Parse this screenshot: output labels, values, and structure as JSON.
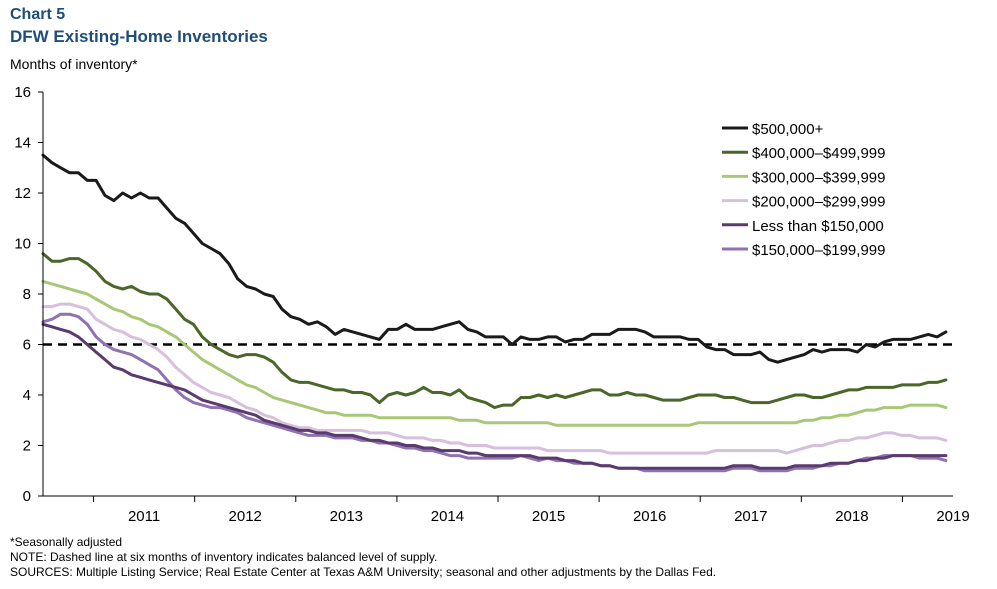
{
  "header": {
    "chart_number": "Chart 5",
    "title": "DFW Existing-Home Inventories",
    "ylabel": "Months of inventory*"
  },
  "footnotes": {
    "asterisk": "*Seasonally adjusted",
    "note": "NOTE: Dashed line at six months of inventory indicates balanced level of supply.",
    "sources": "SOURCES: Multiple Listing Service; Real Estate Center at Texas A&M University; seasonal and other adjustments by the Dallas Fed."
  },
  "chart_data": {
    "type": "line",
    "title": "DFW Existing-Home Inventories",
    "ylabel": "Months of inventory*",
    "xlabel": "",
    "x_start": 2010.5,
    "x_end": 2019.5,
    "ylim": [
      0,
      16
    ],
    "yticks": [
      0,
      2,
      4,
      6,
      8,
      10,
      12,
      14,
      16
    ],
    "x_tick_labels": [
      "2011",
      "2012",
      "2013",
      "2014",
      "2015",
      "2016",
      "2017",
      "2018",
      "2019"
    ],
    "legend_position": "top-right",
    "grid": false,
    "reference_line": {
      "y": 6,
      "style": "dashed",
      "color": "#000000"
    },
    "series": [
      {
        "name": "$500,000+",
        "color": "#1a1a1a",
        "values": [
          13.5,
          13.2,
          13.0,
          12.8,
          12.8,
          12.5,
          12.5,
          11.9,
          11.7,
          12.0,
          11.8,
          12.0,
          11.8,
          11.8,
          11.4,
          11.0,
          10.8,
          10.4,
          10.0,
          9.8,
          9.6,
          9.2,
          8.6,
          8.3,
          8.2,
          8.0,
          7.9,
          7.4,
          7.1,
          7.0,
          6.8,
          6.9,
          6.7,
          6.4,
          6.6,
          6.5,
          6.4,
          6.3,
          6.2,
          6.6,
          6.6,
          6.8,
          6.6,
          6.6,
          6.6,
          6.7,
          6.8,
          6.9,
          6.6,
          6.5,
          6.3,
          6.3,
          6.3,
          6.0,
          6.3,
          6.2,
          6.2,
          6.3,
          6.3,
          6.1,
          6.2,
          6.2,
          6.4,
          6.4,
          6.4,
          6.6,
          6.6,
          6.6,
          6.5,
          6.3,
          6.3,
          6.3,
          6.3,
          6.2,
          6.2,
          5.9,
          5.8,
          5.8,
          5.6,
          5.6,
          5.6,
          5.7,
          5.4,
          5.3,
          5.4,
          5.5,
          5.6,
          5.8,
          5.7,
          5.8,
          5.8,
          5.8,
          5.7,
          6.0,
          5.9,
          6.1,
          6.2,
          6.2,
          6.2,
          6.3,
          6.4,
          6.3,
          6.5
        ]
      },
      {
        "name": "$400,000–$499,999",
        "color": "#4a6628",
        "values": [
          9.6,
          9.3,
          9.3,
          9.4,
          9.4,
          9.2,
          8.9,
          8.5,
          8.3,
          8.2,
          8.3,
          8.1,
          8.0,
          8.0,
          7.8,
          7.4,
          7.0,
          6.8,
          6.3,
          6.0,
          5.8,
          5.6,
          5.5,
          5.6,
          5.6,
          5.5,
          5.3,
          4.9,
          4.6,
          4.5,
          4.5,
          4.4,
          4.3,
          4.2,
          4.2,
          4.1,
          4.1,
          4.0,
          3.7,
          4.0,
          4.1,
          4.0,
          4.1,
          4.3,
          4.1,
          4.1,
          4.0,
          4.2,
          3.9,
          3.8,
          3.7,
          3.5,
          3.6,
          3.6,
          3.9,
          3.9,
          4.0,
          3.9,
          4.0,
          3.9,
          4.0,
          4.1,
          4.2,
          4.2,
          4.0,
          4.0,
          4.1,
          4.0,
          4.0,
          3.9,
          3.8,
          3.8,
          3.8,
          3.9,
          4.0,
          4.0,
          4.0,
          3.9,
          3.9,
          3.8,
          3.7,
          3.7,
          3.7,
          3.8,
          3.9,
          4.0,
          4.0,
          3.9,
          3.9,
          4.0,
          4.1,
          4.2,
          4.2,
          4.3,
          4.3,
          4.3,
          4.3,
          4.4,
          4.4,
          4.4,
          4.5,
          4.5,
          4.6
        ]
      },
      {
        "name": "$300,000–$399,999",
        "color": "#a8c878",
        "values": [
          8.5,
          8.4,
          8.3,
          8.2,
          8.1,
          8.0,
          7.8,
          7.6,
          7.4,
          7.3,
          7.1,
          7.0,
          6.8,
          6.7,
          6.5,
          6.3,
          6.0,
          5.7,
          5.4,
          5.2,
          5.0,
          4.8,
          4.6,
          4.4,
          4.3,
          4.1,
          3.9,
          3.8,
          3.7,
          3.6,
          3.5,
          3.4,
          3.3,
          3.3,
          3.2,
          3.2,
          3.2,
          3.2,
          3.1,
          3.1,
          3.1,
          3.1,
          3.1,
          3.1,
          3.1,
          3.1,
          3.1,
          3.0,
          3.0,
          3.0,
          2.9,
          2.9,
          2.9,
          2.9,
          2.9,
          2.9,
          2.9,
          2.9,
          2.8,
          2.8,
          2.8,
          2.8,
          2.8,
          2.8,
          2.8,
          2.8,
          2.8,
          2.8,
          2.8,
          2.8,
          2.8,
          2.8,
          2.8,
          2.8,
          2.9,
          2.9,
          2.9,
          2.9,
          2.9,
          2.9,
          2.9,
          2.9,
          2.9,
          2.9,
          2.9,
          2.9,
          3.0,
          3.0,
          3.1,
          3.1,
          3.2,
          3.2,
          3.3,
          3.4,
          3.4,
          3.5,
          3.5,
          3.5,
          3.6,
          3.6,
          3.6,
          3.6,
          3.5
        ]
      },
      {
        "name": "$200,000–$299,999",
        "color": "#d7bfdd",
        "values": [
          7.5,
          7.5,
          7.6,
          7.6,
          7.5,
          7.4,
          7.0,
          6.8,
          6.6,
          6.5,
          6.3,
          6.2,
          6.0,
          5.8,
          5.5,
          5.1,
          4.8,
          4.5,
          4.3,
          4.1,
          4.0,
          3.9,
          3.7,
          3.5,
          3.4,
          3.2,
          3.1,
          2.9,
          2.8,
          2.7,
          2.7,
          2.6,
          2.6,
          2.6,
          2.6,
          2.6,
          2.6,
          2.5,
          2.5,
          2.5,
          2.4,
          2.3,
          2.3,
          2.3,
          2.2,
          2.2,
          2.1,
          2.1,
          2.0,
          2.0,
          2.0,
          1.9,
          1.9,
          1.9,
          1.9,
          1.9,
          1.9,
          1.8,
          1.8,
          1.8,
          1.8,
          1.8,
          1.8,
          1.8,
          1.7,
          1.7,
          1.7,
          1.7,
          1.7,
          1.7,
          1.7,
          1.7,
          1.7,
          1.7,
          1.7,
          1.7,
          1.8,
          1.8,
          1.8,
          1.8,
          1.8,
          1.8,
          1.8,
          1.8,
          1.7,
          1.8,
          1.9,
          2.0,
          2.0,
          2.1,
          2.2,
          2.2,
          2.3,
          2.3,
          2.4,
          2.5,
          2.5,
          2.4,
          2.4,
          2.3,
          2.3,
          2.3,
          2.2
        ]
      },
      {
        "name": "Less than $150,000",
        "color": "#5b3a6e",
        "values": [
          6.8,
          6.7,
          6.6,
          6.5,
          6.3,
          6.0,
          5.7,
          5.4,
          5.1,
          5.0,
          4.8,
          4.7,
          4.6,
          4.5,
          4.4,
          4.3,
          4.2,
          4.0,
          3.8,
          3.7,
          3.6,
          3.5,
          3.4,
          3.3,
          3.2,
          3.0,
          2.9,
          2.8,
          2.7,
          2.6,
          2.6,
          2.5,
          2.5,
          2.4,
          2.4,
          2.4,
          2.3,
          2.2,
          2.2,
          2.1,
          2.1,
          2.0,
          2.0,
          1.9,
          1.9,
          1.8,
          1.8,
          1.8,
          1.7,
          1.7,
          1.6,
          1.6,
          1.6,
          1.6,
          1.6,
          1.6,
          1.5,
          1.5,
          1.5,
          1.4,
          1.4,
          1.3,
          1.3,
          1.2,
          1.2,
          1.1,
          1.1,
          1.1,
          1.1,
          1.1,
          1.1,
          1.1,
          1.1,
          1.1,
          1.1,
          1.1,
          1.1,
          1.1,
          1.2,
          1.2,
          1.2,
          1.1,
          1.1,
          1.1,
          1.1,
          1.2,
          1.2,
          1.2,
          1.2,
          1.3,
          1.3,
          1.3,
          1.4,
          1.4,
          1.5,
          1.5,
          1.6,
          1.6,
          1.6,
          1.6,
          1.6,
          1.6,
          1.6
        ]
      },
      {
        "name": "$150,000–$199,999",
        "color": "#8e72b2",
        "values": [
          6.9,
          7.0,
          7.2,
          7.2,
          7.1,
          6.8,
          6.3,
          6.0,
          5.8,
          5.7,
          5.6,
          5.4,
          5.2,
          5.0,
          4.6,
          4.2,
          3.9,
          3.7,
          3.6,
          3.5,
          3.5,
          3.4,
          3.3,
          3.1,
          3.0,
          2.9,
          2.8,
          2.7,
          2.6,
          2.5,
          2.4,
          2.4,
          2.4,
          2.3,
          2.3,
          2.3,
          2.2,
          2.2,
          2.1,
          2.1,
          2.0,
          1.9,
          1.9,
          1.8,
          1.8,
          1.7,
          1.6,
          1.6,
          1.5,
          1.5,
          1.5,
          1.5,
          1.5,
          1.5,
          1.6,
          1.5,
          1.4,
          1.5,
          1.4,
          1.4,
          1.3,
          1.3,
          1.3,
          1.2,
          1.2,
          1.1,
          1.1,
          1.1,
          1.0,
          1.0,
          1.0,
          1.0,
          1.0,
          1.0,
          1.0,
          1.0,
          1.0,
          1.0,
          1.1,
          1.1,
          1.1,
          1.0,
          1.0,
          1.0,
          1.0,
          1.1,
          1.1,
          1.1,
          1.2,
          1.2,
          1.3,
          1.3,
          1.4,
          1.5,
          1.5,
          1.6,
          1.6,
          1.6,
          1.6,
          1.5,
          1.5,
          1.5,
          1.4
        ]
      }
    ]
  }
}
